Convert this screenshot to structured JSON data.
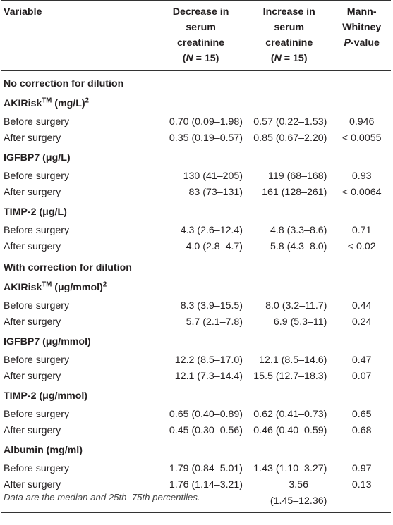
{
  "header": {
    "variable": "Variable",
    "decrease": [
      "Decrease in",
      "serum",
      "creatinine"
    ],
    "decrease_n_pre": "(",
    "decrease_n_italic": "N",
    "decrease_n_post": " = 15)",
    "increase": [
      "Increase in",
      "serum",
      "creatinine"
    ],
    "increase_n_pre": "(",
    "increase_n_italic": "N",
    "increase_n_post": " = 15)",
    "pvalue": [
      "Mann-",
      "Whitney"
    ],
    "pvalue_p_italic": "P",
    "pvalue_p_post": "-value"
  },
  "groups": [
    {
      "title": "No correction for dilution",
      "subsections": [
        {
          "name": "AKIRisk",
          "sup1": "TM",
          "unit": " (mg/L)",
          "sup2": "2",
          "rows": [
            {
              "label": "Before surgery",
              "dec": "0.70 (0.09–1.98)",
              "inc": "0.57 (0.22–1.53)",
              "p": "0.946"
            },
            {
              "label": "After surgery",
              "dec": "0.35 (0.19–0.57)",
              "inc": "0.85 (0.67–2.20)",
              "p": "< 0.0055"
            }
          ]
        },
        {
          "name": "IGFBP7 (μg/L)",
          "rows": [
            {
              "label": "Before surgery",
              "dec": "130 (41–205)",
              "inc": "119 (68–168)",
              "p": "0.93"
            },
            {
              "label": "After surgery",
              "dec": "83 (73–131)",
              "inc": "161 (128–261)",
              "p": "< 0.0064"
            }
          ]
        },
        {
          "name": "TIMP-2 (μg/L)",
          "rows": [
            {
              "label": "Before surgery",
              "dec": "4.3 (2.6–12.4)",
              "inc": "4.8 (3.3–8.6)",
              "p": "0.71"
            },
            {
              "label": "After surgery",
              "dec": "4.0 (2.8–4.7)",
              "inc": "5.8 (4.3–8.0)",
              "p": "< 0.02"
            }
          ]
        }
      ]
    },
    {
      "title": "With correction for dilution",
      "subsections": [
        {
          "name": "AKIRisk",
          "sup1": "TM",
          "unit": " (μg/mmol)",
          "sup2": "2",
          "rows": [
            {
              "label": "Before surgery",
              "dec": "8.3 (3.9–15.5)",
              "inc": "8.0 (3.2–11.7)",
              "p": "0.44"
            },
            {
              "label": "After surgery",
              "dec": "5.7 (2.1–7.8)",
              "inc": "6.9 (5.3–11)",
              "p": "0.24"
            }
          ]
        },
        {
          "name": "IGFBP7 (μg/mmol)",
          "rows": [
            {
              "label": "Before surgery",
              "dec": "12.2 (8.5–17.0)",
              "inc": "12.1 (8.5–14.6)",
              "p": "0.47"
            },
            {
              "label": "After surgery",
              "dec": "12.1 (7.3–14.4)",
              "inc": "15.5 (12.7–18.3)",
              "p": "0.07"
            }
          ]
        },
        {
          "name": "TIMP-2 (μg/mmol)",
          "rows": [
            {
              "label": "Before surgery",
              "dec": "0.65 (0.40–0.89)",
              "inc": "0.62 (0.41–0.73)",
              "p": "0.65"
            },
            {
              "label": "After surgery",
              "dec": "0.45 (0.30–0.56)",
              "inc": "0.46 (0.40–0.59)",
              "p": "0.68"
            }
          ]
        },
        {
          "name": "Albumin (mg/ml)",
          "rows": [
            {
              "label": "Before surgery",
              "dec": "1.79 (0.84–5.01)",
              "inc": "1.43 (1.10–3.27)",
              "p": "0.97"
            },
            {
              "label": "After surgery",
              "dec": "1.76 (1.14–3.21)",
              "inc_lines": [
                "3.56",
                "(1.45–12.36)"
              ],
              "p": "0.13"
            }
          ]
        }
      ]
    }
  ],
  "footnote": "Data are the median and 25th–75th percentiles."
}
